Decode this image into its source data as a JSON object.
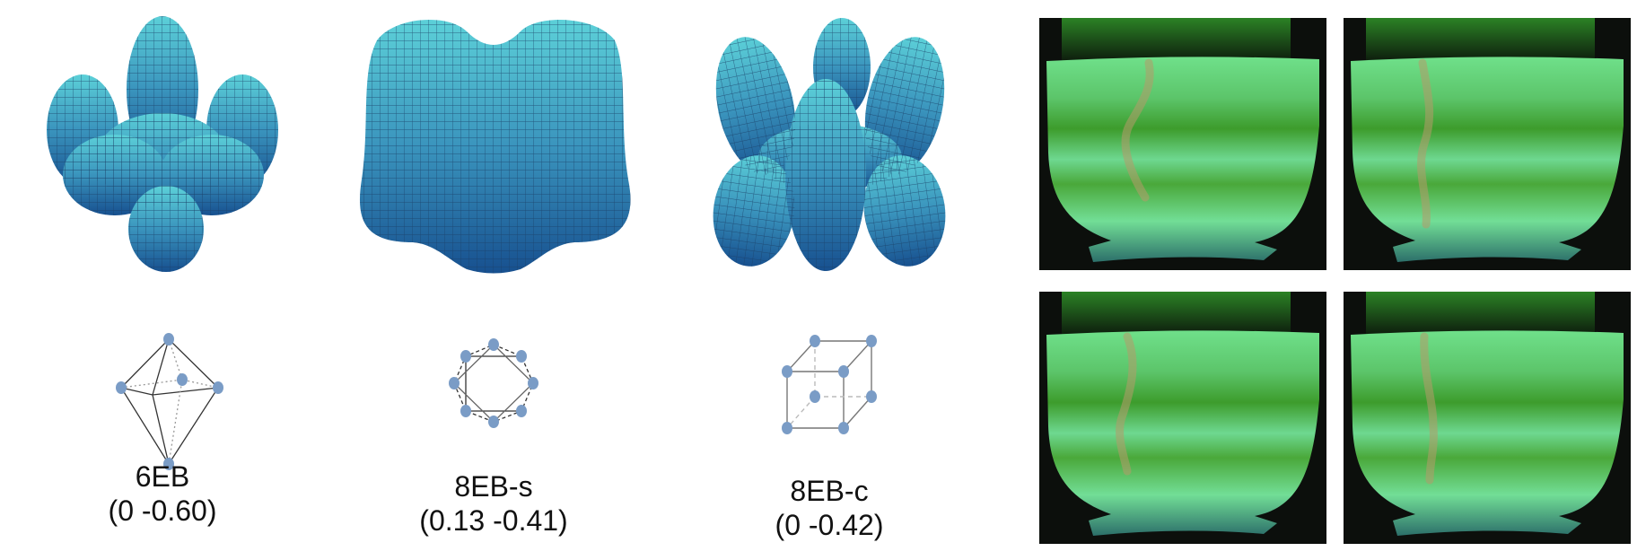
{
  "configurations": [
    {
      "name": "6EB",
      "coords": "(0 -0.60)",
      "polyhedron": "octahedron"
    },
    {
      "name": "8EB-s",
      "coords": "(0.13 -0.41)",
      "polyhedron": "square-antiprism"
    },
    {
      "name": "8EB-c",
      "coords": "(0 -0.42)",
      "polyhedron": "cube"
    }
  ],
  "colors": {
    "surface_light": "#4fc3d0",
    "surface_dark": "#1c5a96",
    "mesh_line": "#1a3f66",
    "vertex": "#7a9cc6",
    "photo_background": "#0c0f0c",
    "photo_green": "#5fd67a"
  },
  "photos": [
    "photo-1",
    "photo-2",
    "photo-3",
    "photo-4"
  ]
}
